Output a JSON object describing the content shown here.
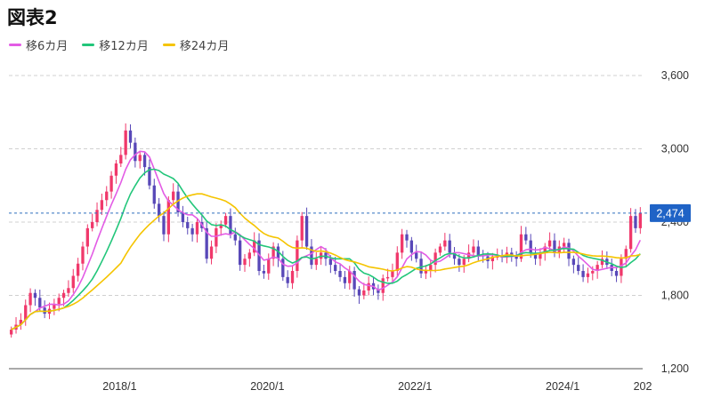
{
  "title": "図表2",
  "chart_data": {
    "type": "candlestick",
    "ylim": [
      1200,
      3600
    ],
    "yticks": [
      1200,
      1800,
      2400,
      3000,
      3600
    ],
    "ytick_labels": [
      "1,200",
      "1,800",
      "2,400",
      "3,000",
      "3,600"
    ],
    "x_start": "2016-07",
    "x_end": "2025-02",
    "xticks": [
      {
        "date": "2018-01",
        "label": "2018/1"
      },
      {
        "date": "2020-01",
        "label": "2020/1"
      },
      {
        "date": "2022-01",
        "label": "2022/1"
      },
      {
        "date": "2024-01",
        "label": "2024/1"
      },
      {
        "date": "2025-07",
        "label": "202"
      }
    ],
    "last_price": 2474,
    "last_price_label": "2,474",
    "grid": true,
    "legend_position": "top-left",
    "up_color": "#f0386b",
    "down_color": "#5848b8",
    "closes": [
      1520,
      1560,
      1600,
      1720,
      1820,
      1780,
      1700,
      1650,
      1690,
      1730,
      1780,
      1820,
      1860,
      1960,
      2060,
      2200,
      2350,
      2400,
      2500,
      2580,
      2650,
      2780,
      2880,
      2950,
      3150,
      3050,
      2900,
      2950,
      2850,
      2700,
      2550,
      2450,
      2300,
      2580,
      2650,
      2480,
      2400,
      2350,
      2300,
      2400,
      2350,
      2100,
      2200,
      2350,
      2380,
      2450,
      2300,
      2250,
      2050,
      2100,
      2150,
      2250,
      2000,
      1980,
      2100,
      2200,
      2100,
      1950,
      1900,
      2000,
      2250,
      2450,
      2200,
      2050,
      2100,
      2150,
      2100,
      2050,
      2000,
      1950,
      1900,
      2000,
      1850,
      1800,
      1840,
      1900,
      1850,
      1820,
      1940,
      1950,
      2000,
      2150,
      2300,
      2250,
      2150,
      2100,
      1980,
      2000,
      2050,
      2150,
      2200,
      2250,
      2150,
      2100,
      2050,
      2100,
      2150,
      2200,
      2130,
      2120,
      2080,
      2120,
      2120,
      2110,
      2150,
      2130,
      2100,
      2300,
      2250,
      2150,
      2100,
      2150,
      2200,
      2250,
      2150,
      2200,
      2230,
      2100,
      2050,
      2000,
      1950,
      1980,
      2000,
      2050,
      2100,
      2050,
      2000,
      1960,
      2100,
      2180,
      2450,
      2350,
      2474
    ],
    "series": [
      {
        "name": "移6カ月",
        "color": "#e35ce5"
      },
      {
        "name": "移12カ月",
        "color": "#22c67a"
      },
      {
        "name": "移24カ月",
        "color": "#f5c400"
      }
    ]
  }
}
